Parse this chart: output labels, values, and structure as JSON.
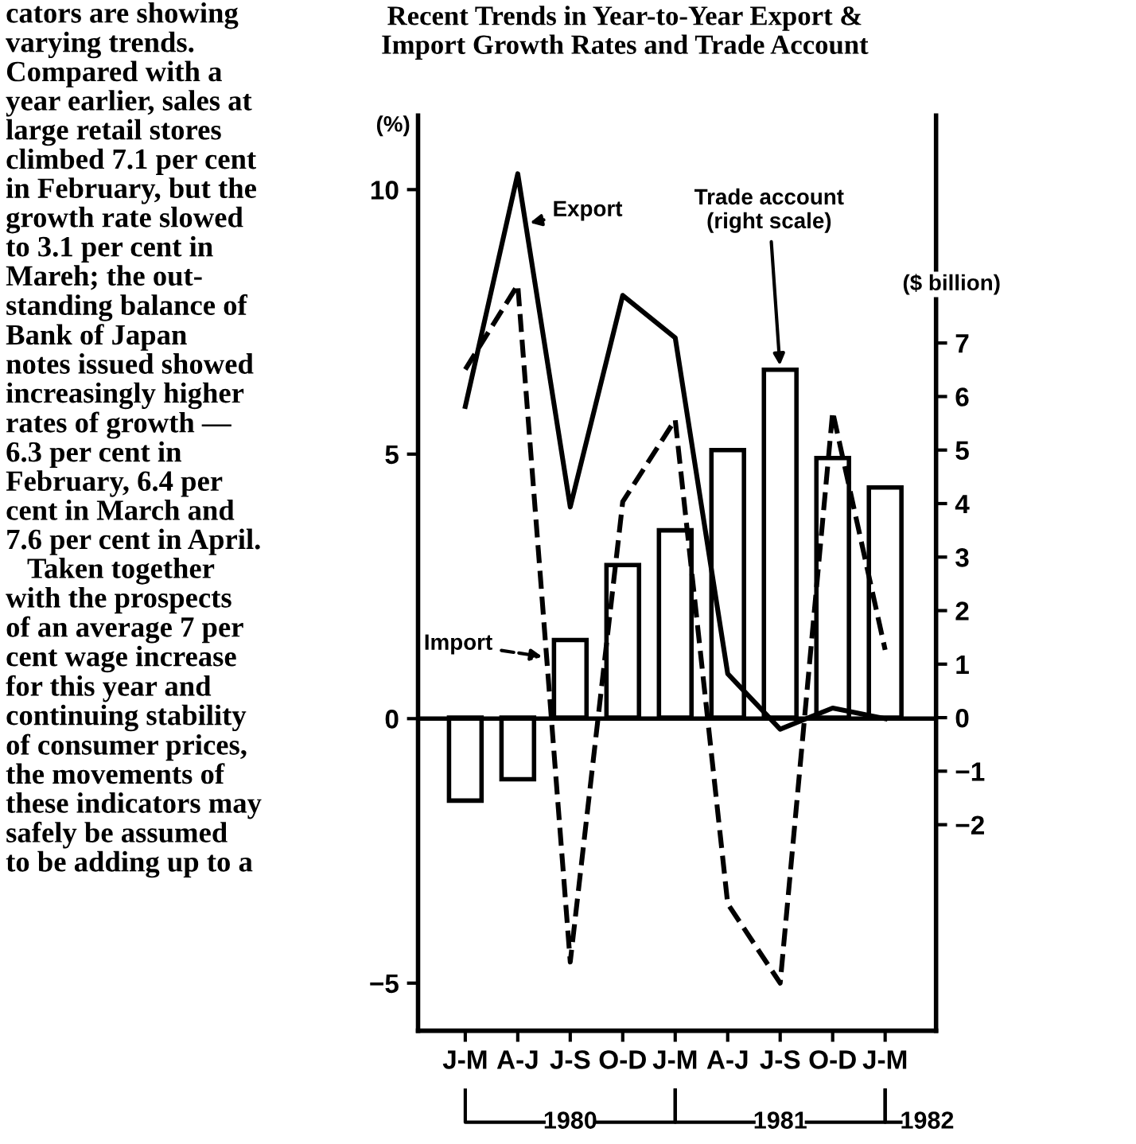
{
  "chart_data": {
    "type": "line",
    "title": "Recent Trends in Year-to-Year Export &\nImport Growth Rates and Trade Account",
    "ylabel": "(%)",
    "y2label": "($ billion)",
    "categories": [
      "J-M",
      "A-J",
      "J-S",
      "O-D",
      "J-M",
      "A-J",
      "J-S",
      "O-D",
      "J-M"
    ],
    "series": [
      {
        "name": "Trade account (right scale)",
        "type": "bar",
        "axis": "y2",
        "color": "#ffffff",
        "values": [
          -1.55,
          -1.15,
          1.45,
          2.85,
          3.5,
          5.0,
          6.5,
          4.85,
          4.3
        ]
      },
      {
        "name": "Export",
        "color": "#000000",
        "line_style": "solid",
        "values": [
          5.9,
          10.3,
          4.0,
          8.0,
          7.2,
          0.85,
          -0.2,
          0.2,
          0.0
        ]
      },
      {
        "name": "Import",
        "color": "#000000",
        "line_style": "dashed",
        "values": [
          6.6,
          8.2,
          -4.6,
          4.1,
          5.65,
          -3.5,
          -5.0,
          5.8,
          1.3
        ]
      }
    ],
    "ylim": [
      -5.9,
      11.4
    ],
    "yticks": [
      10,
      5,
      0,
      {
        "value": -5,
        "label": "−5"
      }
    ],
    "y2lim": [
      -5.85,
      11.25
    ],
    "y2ticks": [
      7,
      6,
      5,
      4,
      3,
      2,
      1,
      0,
      {
        "value": -1,
        "label": "−1"
      },
      {
        "value": -2,
        "label": "−2"
      }
    ],
    "ref_lines": [
      {
        "axis": "y",
        "value": 0
      }
    ],
    "grid": false,
    "marker": "none",
    "annotations": [
      "1980",
      "1981",
      "1982",
      "cators are showing\nvarying trends.\nCompared with a\nyear earlier, sales at\nlarge retail stores\nclimbed 7.1 per cent\nin February, but the\ngrowth rate slowed\nto 3.1 per cent in\nMareh; the out-\nstanding balance of\nBank of Japan\nnotes issued showed\nincreasingly higher\nrates of growth —\n6.3 per cent in\nFebruary, 6.4 per\ncent in March and\n7.6 per cent in April.\n   Taken together\nwith the prospects\nof an average 7 per\ncent wage increase\nfor this year and\ncontinuing stability\nof consumer prices,\nthe movements of\nthese indicators may\nsafely be assumed\nto be adding up to a"
    ]
  }
}
